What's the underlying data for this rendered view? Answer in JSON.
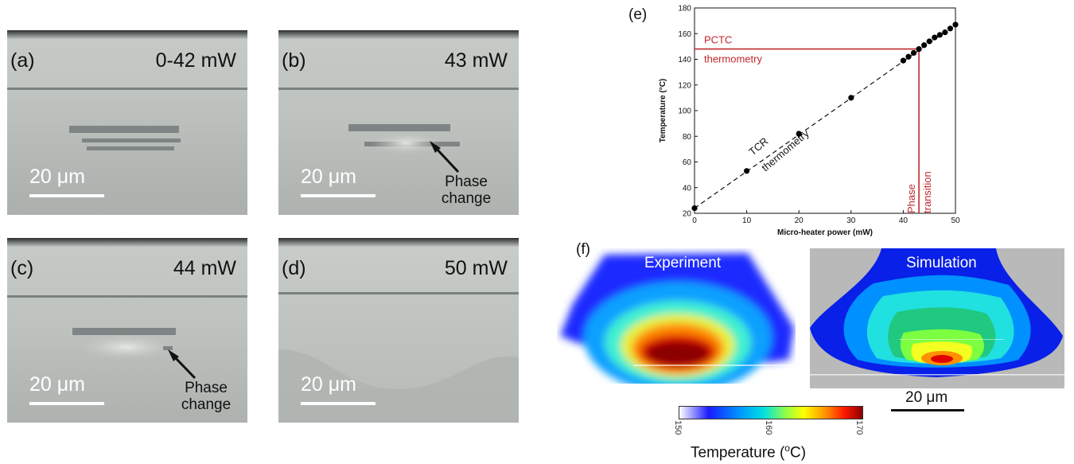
{
  "panels": [
    {
      "label": "(a)",
      "power": "0-42 mW",
      "scale": "20 μm",
      "annotation": ""
    },
    {
      "label": "(b)",
      "power": "43 mW",
      "scale": "20 μm",
      "annotation_line1": "Phase",
      "annotation_line2": "change"
    },
    {
      "label": "(c)",
      "power": "44 mW",
      "scale": "20 μm",
      "annotation_line1": "Phase",
      "annotation_line2": "change"
    },
    {
      "label": "(d)",
      "power": "50 mW",
      "scale": "20 μm",
      "annotation": ""
    }
  ],
  "panel_e_label": "(e)",
  "panel_f_label": "(f)",
  "chart_data": {
    "type": "scatter",
    "xlabel": "Micro-heater power (mW)",
    "ylabel": "Temperature (°C)",
    "xlim": [
      0,
      50
    ],
    "ylim": [
      20,
      180
    ],
    "x_ticks": [
      "0",
      "10",
      "20",
      "30",
      "40",
      "50"
    ],
    "y_ticks": [
      "20",
      "40",
      "60",
      "80",
      "100",
      "120",
      "140",
      "160",
      "180"
    ],
    "x": [
      0,
      10,
      20,
      30,
      40,
      41,
      42,
      43,
      44,
      45,
      46,
      47,
      48,
      49,
      50
    ],
    "y": [
      24,
      53,
      82,
      110,
      139,
      142,
      145,
      148,
      151,
      154,
      157,
      159,
      161,
      164,
      167
    ],
    "fit_line": {
      "x": [
        0,
        50
      ],
      "y": [
        24,
        167
      ],
      "style": "dashed"
    },
    "pctc_temperature": 148,
    "phase_transition_power": 43,
    "annotations": {
      "pctc_line1": "PCTC",
      "pctc_line2": "thermometry",
      "tcr_line1": "TCR",
      "tcr_line2": "thermometry",
      "phase_line1": "Phase",
      "phase_line2": "transition"
    },
    "colors": {
      "pctc": "#c0282d",
      "points": "#000000"
    }
  },
  "heatmaps": {
    "experiment_title": "Experiment",
    "simulation_title": "Simulation",
    "scale": "20 μm",
    "colorbar": {
      "ticks": [
        "150",
        "160",
        "170"
      ],
      "title": "Temperature (",
      "title_unit_sup": "o",
      "title_unit": "C)"
    }
  }
}
